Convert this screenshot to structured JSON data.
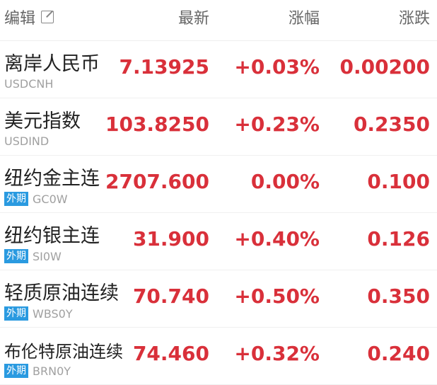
{
  "header": {
    "edit_label": "编辑",
    "latest": "最新",
    "change_pct": "涨幅",
    "change": "涨跌"
  },
  "colors": {
    "up": "#d9303a",
    "badge": "#2a9ae0"
  },
  "rows": [
    {
      "name": "离岸人民币",
      "code": "USDCNH",
      "badge": "",
      "latest": "7.13925",
      "pct": "+0.03%",
      "chg": "0.00200"
    },
    {
      "name": "美元指数",
      "code": "USDIND",
      "badge": "",
      "latest": "103.8250",
      "pct": "+0.23%",
      "chg": "0.2350"
    },
    {
      "name": "纽约金主连",
      "code": "GC0W",
      "badge": "外期",
      "latest": "2707.600",
      "pct": "0.00%",
      "chg": "0.100"
    },
    {
      "name": "纽约银主连",
      "code": "SI0W",
      "badge": "外期",
      "latest": "31.900",
      "pct": "+0.40%",
      "chg": "0.126"
    },
    {
      "name": "轻质原油连续",
      "code": "WBS0Y",
      "badge": "外期",
      "latest": "70.740",
      "pct": "+0.50%",
      "chg": "0.350"
    },
    {
      "name": "布伦特原油连续",
      "code": "BRN0Y",
      "badge": "外期",
      "latest": "74.460",
      "pct": "+0.32%",
      "chg": "0.240"
    }
  ]
}
